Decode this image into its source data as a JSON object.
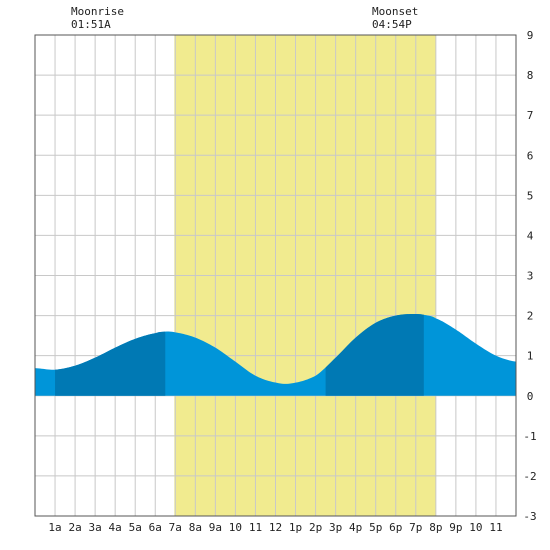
{
  "moon": {
    "moonrise_label": "Moonrise",
    "moonrise_time": "01:51A",
    "moonset_label": "Moonset",
    "moonset_time": "04:54P"
  },
  "chart_data": {
    "type": "area",
    "title": "",
    "xlabel": "",
    "ylabel": "",
    "x_ticks": [
      "1a",
      "2a",
      "3a",
      "4a",
      "5a",
      "6a",
      "7a",
      "8a",
      "9a",
      "10",
      "11",
      "12",
      "1p",
      "2p",
      "3p",
      "4p",
      "5p",
      "6p",
      "7p",
      "8p",
      "9p",
      "10",
      "11"
    ],
    "xlim": [
      0,
      24
    ],
    "ylim": [
      -3,
      9
    ],
    "y_ticks": [
      -3,
      -2,
      -1,
      0,
      1,
      2,
      3,
      4,
      5,
      6,
      7,
      8,
      9
    ],
    "grid": true,
    "daylight_hours": [
      6.95,
      20.0
    ],
    "dark_band_hours": [
      [
        1.0,
        6.5
      ],
      [
        14.5,
        19.4
      ]
    ],
    "series": [
      {
        "x": [
          0,
          1,
          2,
          3,
          4,
          5,
          6,
          6.5,
          7,
          8,
          9,
          10,
          11,
          12,
          12.8,
          14,
          15,
          16,
          17,
          18,
          19,
          19.5,
          20,
          21,
          22,
          23,
          24
        ],
        "y": [
          0.69,
          0.65,
          0.75,
          0.95,
          1.2,
          1.42,
          1.56,
          1.6,
          1.58,
          1.45,
          1.2,
          0.85,
          0.5,
          0.33,
          0.31,
          0.5,
          0.95,
          1.45,
          1.82,
          2.0,
          2.04,
          2.01,
          1.93,
          1.65,
          1.3,
          1.0,
          0.85
        ]
      }
    ]
  },
  "colors": {
    "daylight": "#f1eb8f",
    "tide_fill": "#0095d9",
    "tide_dark": "#0079b4",
    "grid": "#c8c8c8",
    "frame": "#555555"
  }
}
